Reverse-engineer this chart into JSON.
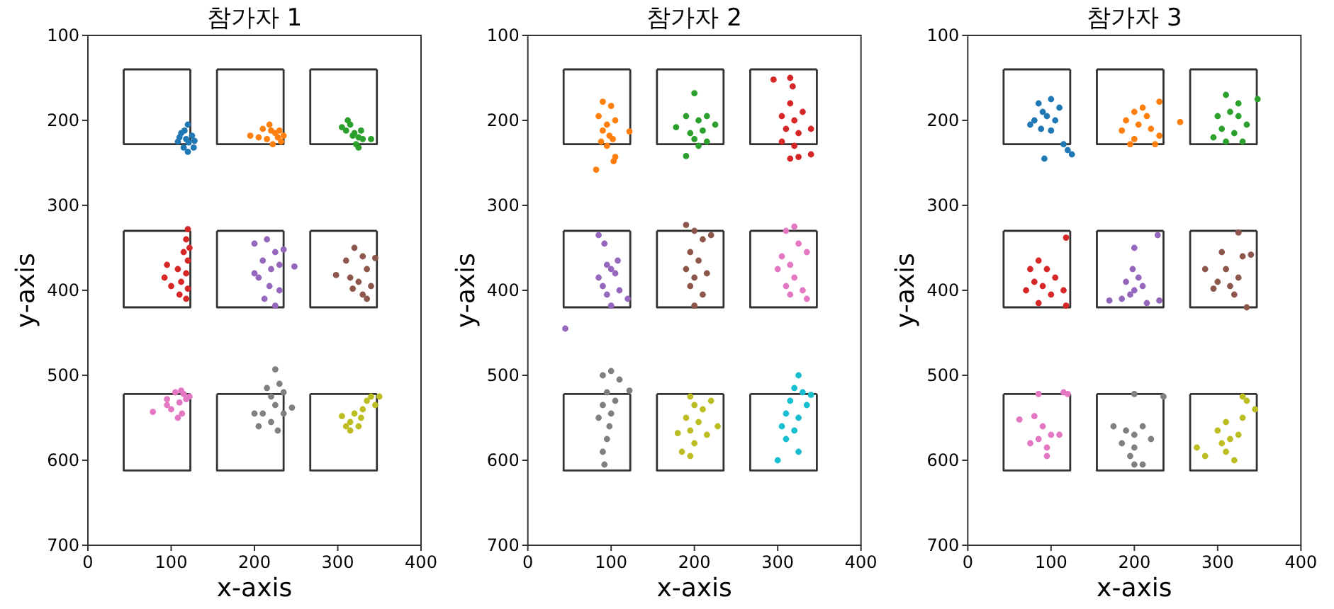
{
  "chart_data": [
    {
      "type": "scatter",
      "title": "참가자 1",
      "xlabel": "x-axis",
      "ylabel": "y-axis",
      "xlim": [
        0,
        400
      ],
      "xticks": [
        0,
        100,
        200,
        300,
        400
      ],
      "ylim": [
        700,
        100
      ],
      "yticks": [
        100,
        200,
        300,
        400,
        500,
        600,
        700
      ],
      "marker": "circle",
      "series": [
        {
          "type": "line",
          "marker": "none",
          "line_style": "solid",
          "color": "#333333",
          "x": [
            43,
            43,
            123,
            123
          ],
          "values": [
            140,
            228,
            228,
            140
          ]
        },
        {
          "type": "line",
          "marker": "none",
          "line_style": "solid",
          "color": "#333333",
          "x": [
            43,
            123
          ],
          "values": [
            140,
            140
          ]
        },
        {
          "type": "line",
          "marker": "none",
          "line_style": "solid",
          "color": "#333333",
          "x": [
            155,
            155,
            235,
            235
          ],
          "values": [
            140,
            228,
            228,
            140
          ]
        },
        {
          "type": "line",
          "marker": "none",
          "line_style": "solid",
          "color": "#333333",
          "x": [
            155,
            235
          ],
          "values": [
            140,
            140
          ]
        },
        {
          "type": "line",
          "marker": "none",
          "line_style": "solid",
          "color": "#333333",
          "x": [
            267,
            267,
            347,
            347
          ],
          "values": [
            140,
            228,
            228,
            140
          ]
        },
        {
          "type": "line",
          "marker": "none",
          "line_style": "solid",
          "color": "#333333",
          "x": [
            267,
            347
          ],
          "values": [
            140,
            140
          ]
        },
        {
          "type": "line",
          "marker": "none",
          "line_style": "solid",
          "color": "#333333",
          "x": [
            43,
            43,
            123,
            123
          ],
          "values": [
            330,
            420,
            420,
            330
          ]
        },
        {
          "type": "line",
          "marker": "none",
          "line_style": "solid",
          "color": "#333333",
          "x": [
            43,
            123
          ],
          "values": [
            330,
            330
          ]
        },
        {
          "type": "line",
          "marker": "none",
          "line_style": "solid",
          "color": "#333333",
          "x": [
            155,
            155,
            235,
            235
          ],
          "values": [
            330,
            420,
            420,
            330
          ]
        },
        {
          "type": "line",
          "marker": "none",
          "line_style": "solid",
          "color": "#333333",
          "x": [
            155,
            235
          ],
          "values": [
            330,
            330
          ]
        },
        {
          "type": "line",
          "marker": "none",
          "line_style": "solid",
          "color": "#333333",
          "x": [
            267,
            267,
            347,
            347
          ],
          "values": [
            330,
            420,
            420,
            330
          ]
        },
        {
          "type": "line",
          "marker": "none",
          "line_style": "solid",
          "color": "#333333",
          "x": [
            267,
            347
          ],
          "values": [
            330,
            330
          ]
        },
        {
          "type": "line",
          "marker": "none",
          "line_style": "solid",
          "color": "#333333",
          "x": [
            43,
            43,
            123,
            123
          ],
          "values": [
            522,
            612,
            612,
            522
          ]
        },
        {
          "type": "line",
          "marker": "none",
          "line_style": "solid",
          "color": "#333333",
          "x": [
            43,
            123
          ],
          "values": [
            522,
            522
          ]
        },
        {
          "type": "line",
          "marker": "none",
          "line_style": "solid",
          "color": "#333333",
          "x": [
            155,
            155,
            235,
            235
          ],
          "values": [
            522,
            612,
            612,
            522
          ]
        },
        {
          "type": "line",
          "marker": "none",
          "line_style": "solid",
          "color": "#333333",
          "x": [
            155,
            235
          ],
          "values": [
            522,
            522
          ]
        },
        {
          "type": "line",
          "marker": "none",
          "line_style": "solid",
          "color": "#333333",
          "x": [
            267,
            267,
            347,
            347
          ],
          "values": [
            522,
            612,
            612,
            522
          ]
        },
        {
          "type": "line",
          "marker": "none",
          "line_style": "solid",
          "color": "#333333",
          "x": [
            267,
            347
          ],
          "values": [
            522,
            522
          ]
        },
        {
          "color": "#1f77b4",
          "x": [
            120,
            112,
            125,
            118,
            108,
            121,
            115,
            128,
            110,
            120,
            116,
            127
          ],
          "values": [
            205,
            215,
            218,
            222,
            225,
            226,
            232,
            224,
            220,
            237,
            212,
            232
          ]
        },
        {
          "color": "#ff7f0e",
          "x": [
            210,
            195,
            220,
            228,
            232,
            215,
            225,
            235,
            205,
            222,
            230,
            218
          ],
          "values": [
            210,
            218,
            212,
            220,
            225,
            222,
            215,
            218,
            220,
            228,
            212,
            205
          ]
        },
        {
          "color": "#2ca02c",
          "x": [
            310,
            320,
            315,
            325,
            330,
            318,
            322,
            340,
            305,
            328,
            312,
            325
          ],
          "values": [
            212,
            215,
            205,
            220,
            222,
            218,
            228,
            222,
            208,
            212,
            200,
            232
          ]
        },
        {
          "color": "#d62728",
          "x": [
            120,
            118,
            115,
            120,
            95,
            108,
            118,
            112,
            100,
            120,
            110,
            118,
            92,
            122
          ],
          "values": [
            328,
            340,
            355,
            365,
            370,
            375,
            380,
            390,
            395,
            398,
            405,
            410,
            385,
            350
          ]
        },
        {
          "color": "#9467bd",
          "x": [
            200,
            215,
            225,
            210,
            220,
            230,
            205,
            218,
            230,
            212,
            225,
            248,
            235,
            200
          ],
          "values": [
            345,
            340,
            355,
            365,
            375,
            370,
            385,
            395,
            400,
            410,
            418,
            372,
            352,
            380
          ]
        },
        {
          "color": "#8c564b",
          "x": [
            298,
            310,
            320,
            330,
            335,
            315,
            325,
            340,
            330,
            345,
            318,
            335
          ],
          "values": [
            382,
            365,
            350,
            360,
            375,
            385,
            390,
            395,
            405,
            362,
            398,
            410
          ]
        },
        {
          "color": "#e377c2",
          "x": [
            78,
            95,
            105,
            115,
            110,
            118,
            100,
            108,
            113,
            122,
            95,
            112
          ],
          "values": [
            543,
            528,
            520,
            522,
            532,
            528,
            540,
            550,
            545,
            525,
            535,
            518
          ]
        },
        {
          "color": "#7f7f7f",
          "x": [
            225,
            215,
            230,
            220,
            235,
            225,
            210,
            235,
            220,
            205,
            228,
            245,
            200
          ],
          "values": [
            493,
            515,
            510,
            525,
            520,
            535,
            545,
            545,
            555,
            560,
            565,
            538,
            545
          ]
        },
        {
          "color": "#bcbd22",
          "x": [
            305,
            315,
            320,
            330,
            335,
            325,
            315,
            340,
            350,
            310,
            328,
            345
          ],
          "values": [
            548,
            555,
            545,
            540,
            530,
            560,
            565,
            525,
            525,
            560,
            550,
            535
          ]
        }
      ]
    },
    {
      "type": "scatter",
      "title": "참가자 2",
      "xlabel": "x-axis",
      "ylabel": "y-axis",
      "xlim": [
        0,
        400
      ],
      "xticks": [
        0,
        100,
        200,
        300,
        400
      ],
      "ylim": [
        700,
        100
      ],
      "yticks": [
        100,
        200,
        300,
        400,
        500,
        600,
        700
      ],
      "marker": "circle",
      "series": [
        {
          "type": "line",
          "marker": "none",
          "line_style": "solid",
          "color": "#333333",
          "x": [
            43,
            43,
            123,
            123
          ],
          "values": [
            140,
            228,
            228,
            140
          ]
        },
        {
          "type": "line",
          "marker": "none",
          "line_style": "solid",
          "color": "#333333",
          "x": [
            43,
            123
          ],
          "values": [
            140,
            140
          ]
        },
        {
          "type": "line",
          "marker": "none",
          "line_style": "solid",
          "color": "#333333",
          "x": [
            155,
            155,
            235,
            235
          ],
          "values": [
            140,
            228,
            228,
            140
          ]
        },
        {
          "type": "line",
          "marker": "none",
          "line_style": "solid",
          "color": "#333333",
          "x": [
            155,
            235
          ],
          "values": [
            140,
            140
          ]
        },
        {
          "type": "line",
          "marker": "none",
          "line_style": "solid",
          "color": "#333333",
          "x": [
            267,
            267,
            347,
            347
          ],
          "values": [
            140,
            228,
            228,
            140
          ]
        },
        {
          "type": "line",
          "marker": "none",
          "line_style": "solid",
          "color": "#333333",
          "x": [
            267,
            347
          ],
          "values": [
            140,
            140
          ]
        },
        {
          "type": "line",
          "marker": "none",
          "line_style": "solid",
          "color": "#333333",
          "x": [
            43,
            43,
            123,
            123
          ],
          "values": [
            330,
            420,
            420,
            330
          ]
        },
        {
          "type": "line",
          "marker": "none",
          "line_style": "solid",
          "color": "#333333",
          "x": [
            43,
            123
          ],
          "values": [
            330,
            330
          ]
        },
        {
          "type": "line",
          "marker": "none",
          "line_style": "solid",
          "color": "#333333",
          "x": [
            155,
            155,
            235,
            235
          ],
          "values": [
            330,
            420,
            420,
            330
          ]
        },
        {
          "type": "line",
          "marker": "none",
          "line_style": "solid",
          "color": "#333333",
          "x": [
            155,
            235
          ],
          "values": [
            330,
            330
          ]
        },
        {
          "type": "line",
          "marker": "none",
          "line_style": "solid",
          "color": "#333333",
          "x": [
            267,
            267,
            347,
            347
          ],
          "values": [
            330,
            420,
            420,
            330
          ]
        },
        {
          "type": "line",
          "marker": "none",
          "line_style": "solid",
          "color": "#333333",
          "x": [
            267,
            347
          ],
          "values": [
            330,
            330
          ]
        },
        {
          "type": "line",
          "marker": "none",
          "line_style": "solid",
          "color": "#333333",
          "x": [
            43,
            43,
            123,
            123
          ],
          "values": [
            522,
            612,
            612,
            522
          ]
        },
        {
          "type": "line",
          "marker": "none",
          "line_style": "solid",
          "color": "#333333",
          "x": [
            43,
            123
          ],
          "values": [
            522,
            522
          ]
        },
        {
          "type": "line",
          "marker": "none",
          "line_style": "solid",
          "color": "#333333",
          "x": [
            155,
            155,
            235,
            235
          ],
          "values": [
            522,
            612,
            612,
            522
          ]
        },
        {
          "type": "line",
          "marker": "none",
          "line_style": "solid",
          "color": "#333333",
          "x": [
            155,
            235
          ],
          "values": [
            522,
            522
          ]
        },
        {
          "type": "line",
          "marker": "none",
          "line_style": "solid",
          "color": "#333333",
          "x": [
            267,
            267,
            347,
            347
          ],
          "values": [
            522,
            612,
            612,
            522
          ]
        },
        {
          "type": "line",
          "marker": "none",
          "line_style": "solid",
          "color": "#333333",
          "x": [
            267,
            347
          ],
          "values": [
            522,
            522
          ]
        },
        {
          "color": "#ff7f0e",
          "x": [
            90,
            100,
            85,
            95,
            105,
            90,
            98,
            88,
            102,
            122,
            105,
            103,
            82,
            95
          ],
          "values": [
            178,
            183,
            195,
            205,
            200,
            212,
            218,
            225,
            222,
            213,
            243,
            248,
            258,
            230
          ]
        },
        {
          "color": "#2ca02c",
          "x": [
            200,
            190,
            205,
            215,
            178,
            195,
            210,
            225,
            200,
            215,
            190,
            205
          ],
          "values": [
            168,
            195,
            200,
            195,
            208,
            215,
            212,
            205,
            222,
            225,
            242,
            230
          ]
        },
        {
          "color": "#d62728",
          "x": [
            295,
            315,
            318,
            315,
            305,
            320,
            330,
            310,
            325,
            340,
            305,
            320,
            315,
            340,
            325
          ],
          "values": [
            152,
            150,
            160,
            180,
            195,
            200,
            190,
            210,
            215,
            210,
            225,
            230,
            245,
            240,
            243
          ]
        },
        {
          "color": "#9467bd",
          "x": [
            85,
            92,
            95,
            100,
            85,
            105,
            90,
            110,
            95,
            100,
            120,
            108,
            45
          ],
          "values": [
            335,
            345,
            370,
            375,
            385,
            380,
            395,
            400,
            405,
            418,
            410,
            365,
            445
          ]
        },
        {
          "color": "#8c564b",
          "x": [
            190,
            200,
            210,
            195,
            205,
            190,
            200,
            215,
            195,
            210,
            200,
            220
          ],
          "values": [
            323,
            330,
            340,
            355,
            365,
            375,
            385,
            380,
            395,
            405,
            418,
            335
          ]
        },
        {
          "color": "#e377c2",
          "x": [
            310,
            320,
            325,
            305,
            315,
            335,
            300,
            320,
            310,
            330,
            315,
            335
          ],
          "values": [
            330,
            325,
            345,
            360,
            370,
            355,
            375,
            385,
            395,
            400,
            405,
            410
          ]
        },
        {
          "color": "#7f7f7f",
          "x": [
            90,
            100,
            110,
            95,
            122,
            90,
            100,
            85,
            98,
            95,
            90,
            92,
            105
          ],
          "values": [
            500,
            495,
            505,
            520,
            518,
            535,
            545,
            550,
            560,
            575,
            590,
            605,
            530
          ]
        },
        {
          "color": "#bcbd22",
          "x": [
            195,
            200,
            210,
            220,
            190,
            205,
            195,
            215,
            180,
            200,
            185,
            195,
            228
          ],
          "values": [
            525,
            535,
            540,
            530,
            550,
            555,
            565,
            570,
            568,
            580,
            590,
            595,
            560
          ]
        },
        {
          "color": "#17becf",
          "x": [
            325,
            320,
            330,
            315,
            340,
            310,
            325,
            305,
            320,
            310,
            325,
            300,
            335
          ],
          "values": [
            500,
            515,
            520,
            530,
            523,
            545,
            550,
            560,
            565,
            575,
            590,
            600,
            535
          ]
        }
      ]
    },
    {
      "type": "scatter",
      "title": "참가자 3",
      "xlabel": "x-axis",
      "ylabel": "y-axis",
      "xlim": [
        0,
        400
      ],
      "xticks": [
        0,
        100,
        200,
        300,
        400
      ],
      "ylim": [
        700,
        100
      ],
      "yticks": [
        100,
        200,
        300,
        400,
        500,
        600,
        700
      ],
      "marker": "circle",
      "series": [
        {
          "type": "line",
          "marker": "none",
          "line_style": "solid",
          "color": "#333333",
          "x": [
            43,
            43,
            123,
            123
          ],
          "values": [
            140,
            228,
            228,
            140
          ]
        },
        {
          "type": "line",
          "marker": "none",
          "line_style": "solid",
          "color": "#333333",
          "x": [
            43,
            123
          ],
          "values": [
            140,
            140
          ]
        },
        {
          "type": "line",
          "marker": "none",
          "line_style": "solid",
          "color": "#333333",
          "x": [
            155,
            155,
            235,
            235
          ],
          "values": [
            140,
            228,
            228,
            140
          ]
        },
        {
          "type": "line",
          "marker": "none",
          "line_style": "solid",
          "color": "#333333",
          "x": [
            155,
            235
          ],
          "values": [
            140,
            140
          ]
        },
        {
          "type": "line",
          "marker": "none",
          "line_style": "solid",
          "color": "#333333",
          "x": [
            267,
            267,
            347,
            347
          ],
          "values": [
            140,
            228,
            228,
            140
          ]
        },
        {
          "type": "line",
          "marker": "none",
          "line_style": "solid",
          "color": "#333333",
          "x": [
            267,
            347
          ],
          "values": [
            140,
            140
          ]
        },
        {
          "type": "line",
          "marker": "none",
          "line_style": "solid",
          "color": "#333333",
          "x": [
            43,
            43,
            123,
            123
          ],
          "values": [
            330,
            420,
            420,
            330
          ]
        },
        {
          "type": "line",
          "marker": "none",
          "line_style": "solid",
          "color": "#333333",
          "x": [
            43,
            123
          ],
          "values": [
            330,
            330
          ]
        },
        {
          "type": "line",
          "marker": "none",
          "line_style": "solid",
          "color": "#333333",
          "x": [
            155,
            155,
            235,
            235
          ],
          "values": [
            330,
            420,
            420,
            330
          ]
        },
        {
          "type": "line",
          "marker": "none",
          "line_style": "solid",
          "color": "#333333",
          "x": [
            155,
            235
          ],
          "values": [
            330,
            330
          ]
        },
        {
          "type": "line",
          "marker": "none",
          "line_style": "solid",
          "color": "#333333",
          "x": [
            267,
            267,
            347,
            347
          ],
          "values": [
            330,
            420,
            420,
            330
          ]
        },
        {
          "type": "line",
          "marker": "none",
          "line_style": "solid",
          "color": "#333333",
          "x": [
            267,
            347
          ],
          "values": [
            330,
            330
          ]
        },
        {
          "type": "line",
          "marker": "none",
          "line_style": "solid",
          "color": "#333333",
          "x": [
            43,
            43,
            123,
            123
          ],
          "values": [
            522,
            612,
            612,
            522
          ]
        },
        {
          "type": "line",
          "marker": "none",
          "line_style": "solid",
          "color": "#333333",
          "x": [
            43,
            123
          ],
          "values": [
            522,
            522
          ]
        },
        {
          "type": "line",
          "marker": "none",
          "line_style": "solid",
          "color": "#333333",
          "x": [
            155,
            155,
            235,
            235
          ],
          "values": [
            522,
            612,
            612,
            522
          ]
        },
        {
          "type": "line",
          "marker": "none",
          "line_style": "solid",
          "color": "#333333",
          "x": [
            155,
            235
          ],
          "values": [
            522,
            522
          ]
        },
        {
          "type": "line",
          "marker": "none",
          "line_style": "solid",
          "color": "#333333",
          "x": [
            267,
            267,
            347,
            347
          ],
          "values": [
            522,
            612,
            612,
            522
          ]
        },
        {
          "type": "line",
          "marker": "none",
          "line_style": "solid",
          "color": "#333333",
          "x": [
            267,
            347
          ],
          "values": [
            522,
            522
          ]
        },
        {
          "color": "#1f77b4",
          "x": [
            85,
            100,
            90,
            80,
            95,
            105,
            88,
            100,
            75,
            115,
            120,
            125,
            92,
            110
          ],
          "values": [
            180,
            175,
            190,
            200,
            195,
            200,
            210,
            212,
            205,
            228,
            235,
            240,
            245,
            185
          ]
        },
        {
          "color": "#ff7f0e",
          "x": [
            190,
            200,
            210,
            215,
            205,
            185,
            220,
            200,
            230,
            225,
            195,
            255,
            230
          ],
          "values": [
            200,
            190,
            185,
            195,
            205,
            212,
            210,
            222,
            218,
            228,
            228,
            202,
            178
          ]
        },
        {
          "color": "#2ca02c",
          "x": [
            310,
            300,
            315,
            325,
            335,
            305,
            320,
            295,
            310,
            330,
            348,
            325
          ],
          "values": [
            170,
            195,
            190,
            195,
            205,
            210,
            215,
            220,
            225,
            225,
            175,
            180
          ]
        },
        {
          "color": "#d62728",
          "x": [
            85,
            75,
            95,
            105,
            80,
            90,
            70,
            100,
            115,
            85,
            118,
            118
          ],
          "values": [
            365,
            375,
            375,
            385,
            390,
            395,
            400,
            405,
            400,
            415,
            418,
            338
          ]
        },
        {
          "color": "#9467bd",
          "x": [
            200,
            198,
            205,
            190,
            210,
            195,
            185,
            215,
            230,
            170,
            228,
            200
          ],
          "values": [
            350,
            375,
            385,
            390,
            395,
            405,
            410,
            415,
            412,
            412,
            335,
            400
          ]
        },
        {
          "color": "#8c564b",
          "x": [
            285,
            305,
            310,
            300,
            315,
            325,
            320,
            330,
            340,
            325,
            335,
            295
          ],
          "values": [
            375,
            355,
            375,
            390,
            395,
            385,
            405,
            360,
            358,
            332,
            420,
            398
          ]
        },
        {
          "color": "#e377c2",
          "x": [
            62,
            80,
            90,
            100,
            85,
            95,
            75,
            110,
            115,
            120,
            85,
            95
          ],
          "values": [
            552,
            548,
            560,
            570,
            575,
            585,
            580,
            570,
            520,
            522,
            522,
            595
          ]
        },
        {
          "color": "#7f7f7f",
          "x": [
            175,
            190,
            200,
            210,
            185,
            200,
            220,
            195,
            200,
            210,
            200,
            235
          ],
          "values": [
            560,
            565,
            570,
            560,
            580,
            585,
            575,
            595,
            605,
            605,
            522,
            525
          ]
        },
        {
          "color": "#bcbd22",
          "x": [
            275,
            285,
            300,
            305,
            315,
            310,
            320,
            325,
            330,
            335,
            345,
            330,
            310
          ],
          "values": [
            585,
            595,
            565,
            580,
            575,
            590,
            600,
            570,
            550,
            530,
            540,
            525,
            555
          ]
        }
      ]
    }
  ]
}
